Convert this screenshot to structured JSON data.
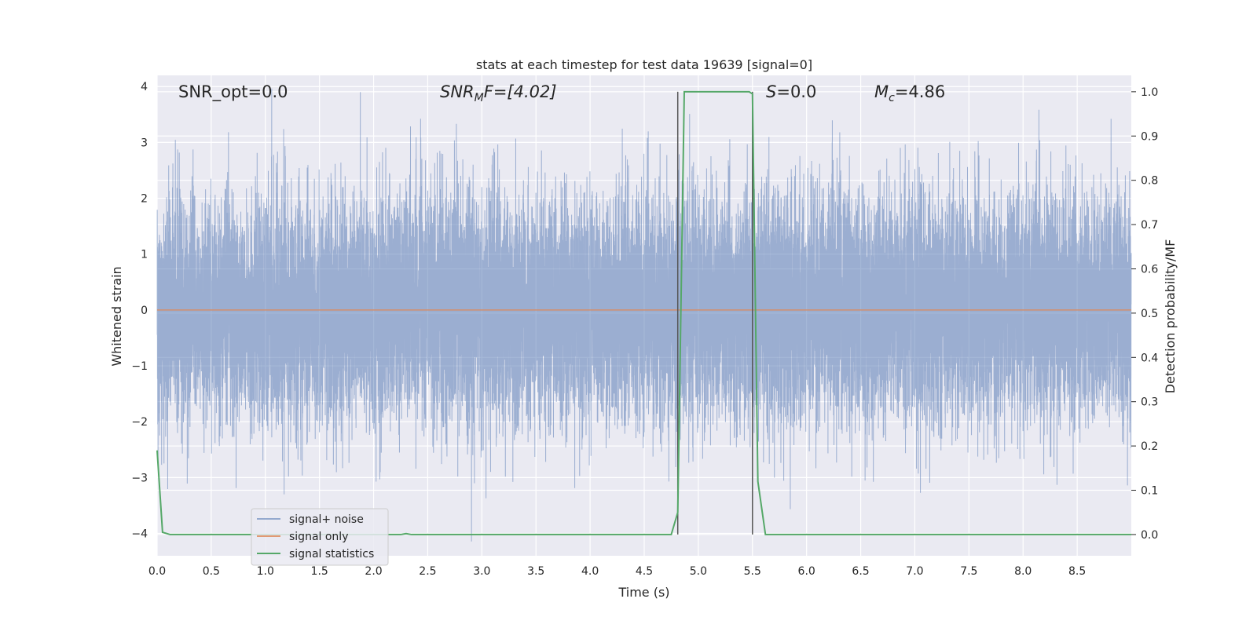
{
  "chart_data": {
    "type": "line",
    "title": "stats at each timestep for test data 19639 [signal=0]",
    "xlabel": "Time (s)",
    "ylabel_left": "Whitened strain",
    "ylabel_right": "Detection probability/MF",
    "xlim": [
      0.0,
      9.0
    ],
    "ylim_left": [
      -4.4,
      4.2
    ],
    "ylim_right": [
      -0.048,
      1.037
    ],
    "x_ticks": [
      "0.0",
      "0.5",
      "1.0",
      "1.5",
      "2.0",
      "2.5",
      "3.0",
      "3.5",
      "4.0",
      "4.5",
      "5.0",
      "5.5",
      "6.0",
      "6.5",
      "7.0",
      "7.5",
      "8.0",
      "8.5"
    ],
    "x_tick_values": [
      0.0,
      0.5,
      1.0,
      1.5,
      2.0,
      2.5,
      3.0,
      3.5,
      4.0,
      4.5,
      5.0,
      5.5,
      6.0,
      6.5,
      7.0,
      7.5,
      8.0,
      8.5
    ],
    "y_left_ticks": [
      "4",
      "3",
      "2",
      "1",
      "0",
      "−1",
      "−2",
      "−3",
      "−4"
    ],
    "y_left_tick_values": [
      4,
      3,
      2,
      1,
      0,
      -1,
      -2,
      -3,
      -4
    ],
    "y_right_ticks": [
      "1.0",
      "0.9",
      "0.8",
      "0.7",
      "0.6",
      "0.5",
      "0.4",
      "0.3",
      "0.2",
      "0.1",
      "0.0"
    ],
    "y_right_tick_values": [
      1.0,
      0.9,
      0.8,
      0.7,
      0.6,
      0.5,
      0.4,
      0.3,
      0.2,
      0.1,
      0.0
    ],
    "grid": true,
    "annotations": {
      "snr_opt": "SNR_opt=0.0",
      "snr_mf_main": "SNR",
      "snr_mf_sub": "M",
      "snr_mf_rest": "F=[4.02]",
      "s_var": "S",
      "s_rest": "=0.0",
      "mc_main": "M",
      "mc_sub": "c",
      "mc_rest": "=4.86"
    },
    "vlines": [
      4.81,
      5.5
    ],
    "legend": {
      "placement": "lower-left",
      "entries": [
        "signal+ noise",
        "signal only",
        "signal statistics"
      ]
    },
    "series": [
      {
        "name": "signal+ noise",
        "axis": "left",
        "color": "#4c72b0",
        "kind": "noise",
        "amplitude_std": 1.0,
        "x_range": [
          0.0,
          9.0
        ],
        "sample_rate": 2048
      },
      {
        "name": "signal only",
        "axis": "left",
        "color": "#dd8452",
        "x": [
          0.0,
          9.0
        ],
        "values": [
          0.0,
          0.0
        ]
      },
      {
        "name": "signal statistics",
        "axis": "right",
        "color": "#55a868",
        "x": [
          0.0,
          0.05,
          0.12,
          0.5,
          1.0,
          1.5,
          2.0,
          2.25,
          2.3,
          2.35,
          2.5,
          3.0,
          3.5,
          4.0,
          4.5,
          4.75,
          4.81,
          4.87,
          5.0,
          5.3,
          5.47,
          5.5,
          5.55,
          5.62,
          6.0,
          7.0,
          8.0,
          8.5,
          9.0
        ],
        "values": [
          0.19,
          0.005,
          0.0,
          0.0,
          0.0,
          0.0,
          0.0,
          0.0,
          0.002,
          0.0,
          0.0,
          0.0,
          0.0,
          0.0,
          0.0,
          0.0,
          0.05,
          1.0,
          1.0,
          1.0,
          1.0,
          0.995,
          0.12,
          0.0,
          0.0,
          0.0,
          0.0,
          0.0,
          0.0
        ]
      }
    ]
  }
}
